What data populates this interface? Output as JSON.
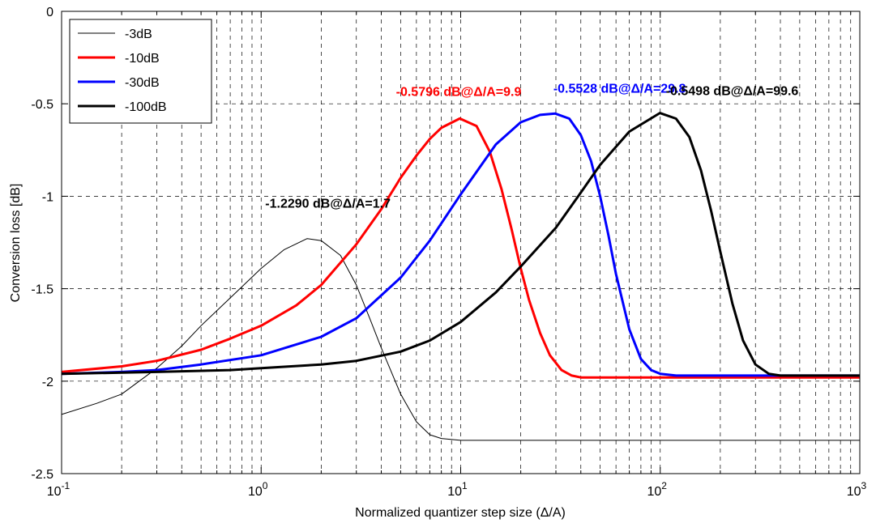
{
  "chart_data": {
    "type": "line",
    "title": "",
    "xlabel": "Normalized quantizer step size (Δ/A)",
    "ylabel": "Conversion loss [dB]",
    "xscale": "log",
    "xlim": [
      0.1,
      1000
    ],
    "ylim": [
      -2.5,
      0
    ],
    "grid": true,
    "legend_position": "top-left",
    "x_ticks": [
      {
        "value": 0.1,
        "base": "10",
        "exp": "-1"
      },
      {
        "value": 1,
        "base": "10",
        "exp": "0"
      },
      {
        "value": 10,
        "base": "10",
        "exp": "1"
      },
      {
        "value": 100,
        "base": "10",
        "exp": "2"
      },
      {
        "value": 1000,
        "base": "10",
        "exp": "3"
      }
    ],
    "y_ticks": [
      {
        "value": 0,
        "label": "0"
      },
      {
        "value": -0.5,
        "label": "-0.5"
      },
      {
        "value": -1,
        "label": "-1"
      },
      {
        "value": -1.5,
        "label": "-1.5"
      },
      {
        "value": -2,
        "label": "-2"
      },
      {
        "value": -2.5,
        "label": "-2.5"
      }
    ],
    "series": [
      {
        "name": "-3dB",
        "color": "#000000",
        "line": "thin",
        "x": [
          0.1,
          0.15,
          0.2,
          0.3,
          0.4,
          0.5,
          0.7,
          1.0,
          1.3,
          1.7,
          2.0,
          2.5,
          3.0,
          3.5,
          4.0,
          5.0,
          6.0,
          7.0,
          8.0,
          10,
          20,
          50,
          100,
          300,
          1000
        ],
        "y": [
          -2.18,
          -2.12,
          -2.07,
          -1.93,
          -1.81,
          -1.7,
          -1.55,
          -1.39,
          -1.29,
          -1.229,
          -1.24,
          -1.32,
          -1.48,
          -1.66,
          -1.82,
          -2.07,
          -2.22,
          -2.29,
          -2.31,
          -2.32,
          -2.32,
          -2.32,
          -2.32,
          -2.32,
          -2.32
        ]
      },
      {
        "name": "-10dB",
        "color": "#ff0000",
        "line": "thick",
        "x": [
          0.1,
          0.2,
          0.3,
          0.5,
          0.7,
          1.0,
          1.5,
          2.0,
          3.0,
          4.0,
          5.0,
          6.0,
          7.0,
          8.0,
          9.9,
          12,
          14,
          16,
          18,
          20,
          22,
          25,
          28,
          32,
          36,
          40,
          45,
          60,
          100,
          300,
          1000
        ],
        "y": [
          -1.95,
          -1.92,
          -1.89,
          -1.83,
          -1.77,
          -1.7,
          -1.59,
          -1.48,
          -1.26,
          -1.07,
          -0.9,
          -0.78,
          -0.69,
          -0.63,
          -0.5796,
          -0.62,
          -0.76,
          -0.96,
          -1.18,
          -1.39,
          -1.56,
          -1.74,
          -1.86,
          -1.94,
          -1.97,
          -1.98,
          -1.98,
          -1.98,
          -1.98,
          -1.98,
          -1.98
        ]
      },
      {
        "name": "-30dB",
        "color": "#0000ff",
        "line": "thick",
        "x": [
          0.1,
          0.2,
          0.3,
          0.5,
          1.0,
          2.0,
          3.0,
          5.0,
          7.0,
          10,
          15,
          20,
          25,
          29.8,
          35,
          40,
          45,
          50,
          55,
          60,
          70,
          80,
          90,
          100,
          120,
          150,
          300,
          1000
        ],
        "y": [
          -1.96,
          -1.95,
          -1.94,
          -1.91,
          -1.86,
          -1.76,
          -1.66,
          -1.44,
          -1.24,
          -0.99,
          -0.72,
          -0.6,
          -0.56,
          -0.5528,
          -0.58,
          -0.67,
          -0.81,
          -1.0,
          -1.21,
          -1.42,
          -1.72,
          -1.88,
          -1.94,
          -1.96,
          -1.97,
          -1.97,
          -1.97,
          -1.97
        ]
      },
      {
        "name": "-100dB",
        "color": "#000000",
        "line": "thick",
        "x": [
          0.1,
          0.3,
          0.7,
          1.0,
          2.0,
          3.0,
          5.0,
          7.0,
          10,
          15,
          20,
          30,
          40,
          50,
          70,
          99.6,
          120,
          140,
          160,
          180,
          200,
          230,
          260,
          300,
          350,
          400,
          500,
          1000
        ],
        "y": [
          -1.96,
          -1.95,
          -1.94,
          -1.93,
          -1.91,
          -1.89,
          -1.84,
          -1.78,
          -1.68,
          -1.52,
          -1.38,
          -1.17,
          -0.98,
          -0.83,
          -0.65,
          -0.5498,
          -0.58,
          -0.68,
          -0.86,
          -1.08,
          -1.3,
          -1.58,
          -1.78,
          -1.91,
          -1.96,
          -1.97,
          -1.97,
          -1.97
        ]
      }
    ],
    "annotations": [
      {
        "text": "-1.2290 dB@Δ/A=1.7",
        "color": "#000000",
        "x": 1.7,
        "y": -1.229
      },
      {
        "text": "-0.5796 dB@Δ/A=9.9",
        "color": "#ff0000",
        "x": 9.9,
        "y": -0.5796
      },
      {
        "text": "-0.5528 dB@Δ/A=29.8",
        "color": "#0000ff",
        "x": 29.8,
        "y": -0.5528
      },
      {
        "text": "-0.5498 dB@Δ/A=99.6",
        "color": "#000000",
        "x": 99.6,
        "y": -0.5498
      }
    ]
  }
}
